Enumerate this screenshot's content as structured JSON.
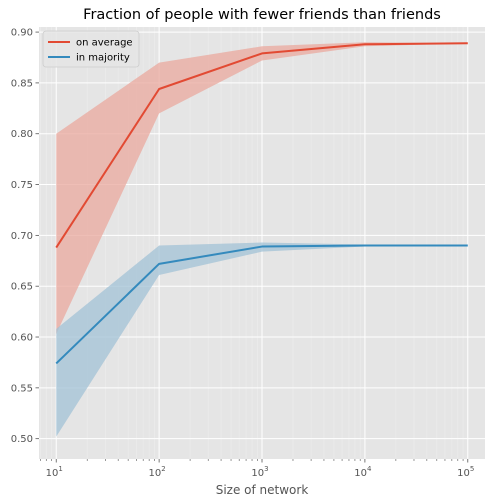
{
  "chart_data": {
    "type": "line",
    "title": "Fraction of people with fewer friends than friends",
    "xlabel": "Size of network",
    "ylabel": "",
    "x_scale": "log",
    "x": [
      10,
      100,
      1000,
      10000,
      100000
    ],
    "x_tick_labels": [
      {
        "base": "10",
        "exp": "1"
      },
      {
        "base": "10",
        "exp": "2"
      },
      {
        "base": "10",
        "exp": "3"
      },
      {
        "base": "10",
        "exp": "4"
      },
      {
        "base": "10",
        "exp": "5"
      }
    ],
    "xlim": [
      6.8,
      147000
    ],
    "ylim": [
      0.48,
      0.905
    ],
    "y_ticks": [
      "0.50",
      "0.55",
      "0.60",
      "0.65",
      "0.70",
      "0.75",
      "0.80",
      "0.85",
      "0.90"
    ],
    "grid": true,
    "legend_position": "top-left",
    "series": [
      {
        "name": "on average",
        "color": "#E24A33",
        "band_color": "#E9A89D",
        "values": [
          0.688,
          0.844,
          0.879,
          0.888,
          0.889
        ],
        "lower": [
          0.603,
          0.82,
          0.872,
          0.886,
          0.889
        ],
        "upper": [
          0.8,
          0.87,
          0.886,
          0.89,
          0.889
        ]
      },
      {
        "name": "in majority",
        "color": "#348ABD",
        "band_color": "#A2C1D6",
        "values": [
          0.574,
          0.672,
          0.689,
          0.69,
          0.69
        ],
        "lower": [
          0.502,
          0.661,
          0.684,
          0.689,
          0.69
        ],
        "upper": [
          0.608,
          0.69,
          0.693,
          0.691,
          0.69
        ]
      }
    ]
  }
}
